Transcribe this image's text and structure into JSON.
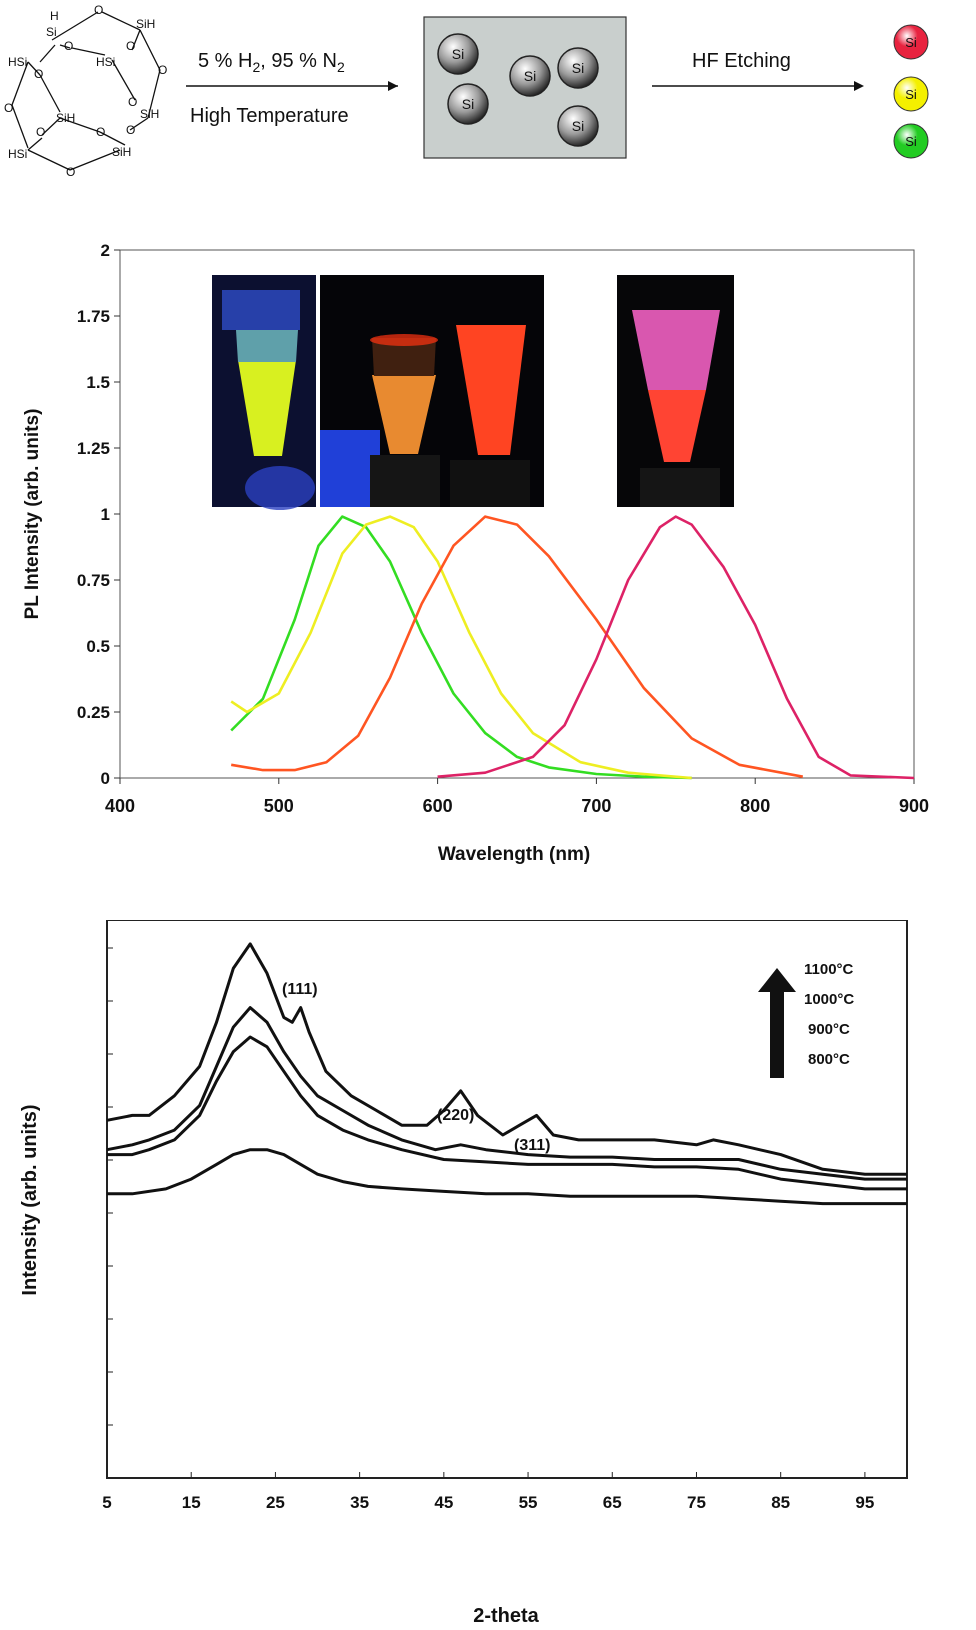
{
  "scheme": {
    "molecule_atoms": [
      "H",
      "Si",
      "O",
      "SiH",
      "HSi",
      "O",
      "HSi",
      "O",
      "O",
      "O",
      "O",
      "SiH",
      "SiH",
      "O",
      "O",
      "O",
      "O",
      "HSi",
      "SiH",
      "O"
    ],
    "step1_line1": "5 % H",
    "step1_sub": "2",
    "step1_line1b": ", 95 % N",
    "step1_sub2": "2",
    "step1_line2": "High Temperature",
    "step2_label": "HF Etching",
    "particle_label": "Si",
    "product_colors": [
      "#e8233f",
      "#f4f000",
      "#22cc22"
    ],
    "box_color": "#c9cfcd"
  },
  "chart_data": [
    {
      "type": "line",
      "title": "",
      "xlabel": "Wavelength (nm)",
      "ylabel": "PL Intensity (arb. units)",
      "xlim": [
        400,
        900
      ],
      "ylim": [
        0,
        2
      ],
      "xticks": [
        "400",
        "500",
        "600",
        "700",
        "800",
        "900"
      ],
      "yticks": [
        "0",
        "0.25",
        "0.5",
        "0.75",
        "1",
        "1.25",
        "1.5",
        "1.75",
        "2"
      ],
      "inset_photos": [
        "green-yellow vial",
        "orange vial",
        "red vial",
        "pink vial"
      ],
      "series": [
        {
          "name": "green",
          "color": "#33dd22",
          "x": [
            470,
            490,
            510,
            525,
            540,
            555,
            570,
            590,
            610,
            630,
            650,
            670,
            700,
            730,
            760
          ],
          "y": [
            0.18,
            0.3,
            0.6,
            0.88,
            0.99,
            0.95,
            0.82,
            0.55,
            0.32,
            0.17,
            0.08,
            0.04,
            0.015,
            0.005,
            0
          ]
        },
        {
          "name": "yellow",
          "color": "#eeee22",
          "x": [
            470,
            480,
            500,
            520,
            540,
            555,
            570,
            585,
            600,
            620,
            640,
            660,
            690,
            720,
            760
          ],
          "y": [
            0.29,
            0.25,
            0.32,
            0.55,
            0.85,
            0.96,
            0.99,
            0.95,
            0.82,
            0.55,
            0.32,
            0.17,
            0.06,
            0.02,
            0
          ]
        },
        {
          "name": "red",
          "color": "#ff5522",
          "x": [
            470,
            490,
            510,
            530,
            550,
            570,
            590,
            610,
            630,
            650,
            670,
            700,
            730,
            760,
            790,
            830
          ],
          "y": [
            0.05,
            0.03,
            0.03,
            0.06,
            0.16,
            0.38,
            0.66,
            0.88,
            0.99,
            0.96,
            0.84,
            0.6,
            0.34,
            0.15,
            0.05,
            0.005
          ]
        },
        {
          "name": "magenta",
          "color": "#dd2266",
          "x": [
            600,
            630,
            660,
            680,
            700,
            720,
            740,
            750,
            760,
            780,
            800,
            820,
            840,
            860,
            900
          ],
          "y": [
            0.005,
            0.02,
            0.08,
            0.2,
            0.45,
            0.75,
            0.95,
            0.99,
            0.96,
            0.8,
            0.58,
            0.3,
            0.08,
            0.01,
            0
          ]
        }
      ]
    },
    {
      "type": "line",
      "title": "",
      "xlabel": "2-theta",
      "ylabel": "Intensity (arb. units)",
      "xlim": [
        5,
        100
      ],
      "xticks": [
        "5",
        "15",
        "25",
        "35",
        "45",
        "55",
        "65",
        "75",
        "85",
        "95"
      ],
      "legend": [
        "1100°C",
        "1000°C",
        "900°C",
        "800°C"
      ],
      "annotations": [
        "(111)",
        "(220)",
        "(311)"
      ],
      "series": [
        {
          "name": "1100°C",
          "x": [
            5,
            8,
            10,
            13,
            16,
            18,
            20,
            22,
            24,
            26,
            27,
            28,
            29,
            31,
            34,
            37,
            40,
            43,
            45,
            47,
            49,
            52,
            54,
            56,
            58,
            61,
            65,
            70,
            75,
            77,
            80,
            85,
            90,
            95,
            100
          ],
          "y": [
            0.73,
            0.74,
            0.74,
            0.78,
            0.84,
            0.93,
            1.04,
            1.09,
            1.03,
            0.94,
            0.93,
            0.96,
            0.91,
            0.83,
            0.78,
            0.75,
            0.72,
            0.72,
            0.75,
            0.79,
            0.74,
            0.7,
            0.72,
            0.74,
            0.7,
            0.69,
            0.69,
            0.69,
            0.68,
            0.69,
            0.68,
            0.66,
            0.63,
            0.62,
            0.62
          ]
        },
        {
          "name": "1000°C",
          "x": [
            5,
            8,
            10,
            13,
            16,
            18,
            20,
            22,
            24,
            26,
            28,
            30,
            33,
            36,
            40,
            44,
            47,
            50,
            55,
            60,
            65,
            70,
            75,
            80,
            85,
            90,
            95,
            100
          ],
          "y": [
            0.67,
            0.68,
            0.69,
            0.71,
            0.76,
            0.84,
            0.92,
            0.96,
            0.93,
            0.87,
            0.82,
            0.78,
            0.75,
            0.72,
            0.69,
            0.67,
            0.68,
            0.67,
            0.66,
            0.655,
            0.655,
            0.65,
            0.65,
            0.65,
            0.63,
            0.62,
            0.61,
            0.61
          ]
        },
        {
          "name": "900°C",
          "x": [
            5,
            8,
            10,
            13,
            16,
            18,
            20,
            22,
            24,
            26,
            28,
            30,
            33,
            36,
            40,
            45,
            50,
            55,
            60,
            65,
            70,
            75,
            80,
            85,
            90,
            95,
            100
          ],
          "y": [
            0.66,
            0.66,
            0.67,
            0.69,
            0.74,
            0.81,
            0.87,
            0.9,
            0.88,
            0.83,
            0.78,
            0.74,
            0.71,
            0.69,
            0.67,
            0.65,
            0.645,
            0.64,
            0.64,
            0.64,
            0.635,
            0.635,
            0.63,
            0.61,
            0.6,
            0.59,
            0.59
          ]
        },
        {
          "name": "800°C",
          "x": [
            5,
            8,
            12,
            15,
            18,
            20,
            22,
            24,
            26,
            28,
            30,
            33,
            36,
            40,
            45,
            50,
            55,
            60,
            65,
            70,
            75,
            80,
            85,
            90,
            95,
            100
          ],
          "y": [
            0.58,
            0.58,
            0.59,
            0.61,
            0.64,
            0.66,
            0.67,
            0.67,
            0.66,
            0.64,
            0.62,
            0.605,
            0.595,
            0.59,
            0.585,
            0.58,
            0.58,
            0.575,
            0.575,
            0.575,
            0.575,
            0.57,
            0.565,
            0.56,
            0.56,
            0.56
          ]
        }
      ]
    }
  ]
}
